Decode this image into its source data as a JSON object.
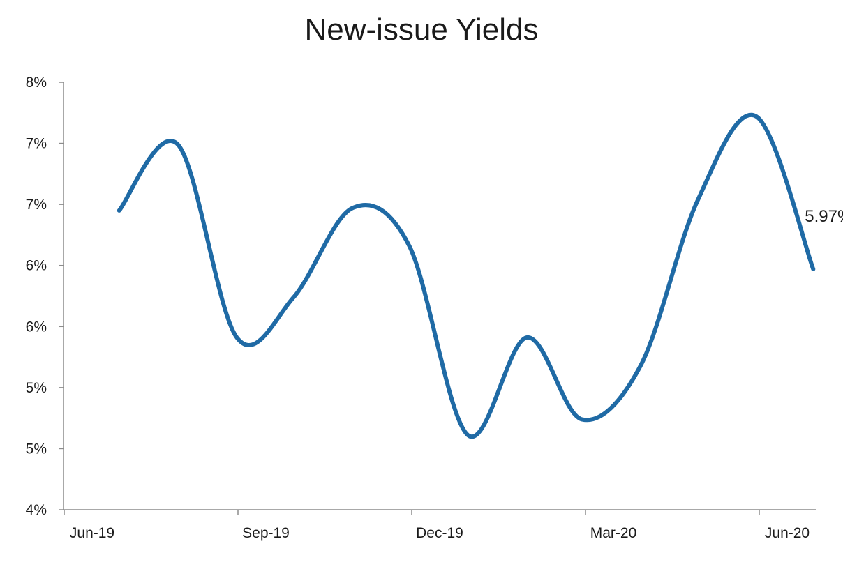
{
  "chart_data": {
    "type": "line",
    "title": "New-issue Yields",
    "xlabel": "",
    "ylabel": "",
    "x_tick_labels": [
      "Jun-19",
      "Sep-19",
      "Dec-19",
      "Mar-20",
      "Jun-20"
    ],
    "y_tick_labels": [
      "4%",
      "5%",
      "5%",
      "6%",
      "6%",
      "7%",
      "7%",
      "8%"
    ],
    "ylim": [
      4.0,
      7.5
    ],
    "grid": false,
    "legend": "none",
    "series": [
      {
        "color": "#1f6aa5",
        "x": [
          "2019-06-30",
          "2019-07-31",
          "2019-08-31",
          "2019-09-30",
          "2019-10-31",
          "2019-11-30",
          "2019-12-31",
          "2020-01-31",
          "2020-02-29",
          "2020-03-31",
          "2020-04-30",
          "2020-05-31",
          "2020-06-30"
        ],
        "values": [
          6.45,
          6.99,
          5.41,
          5.74,
          6.47,
          6.16,
          4.61,
          5.41,
          4.74,
          5.18,
          6.53,
          7.22,
          5.97
        ]
      }
    ],
    "annotations": [
      {
        "text": "5.97%",
        "x": "2020-06-30",
        "y": 5.97
      }
    ]
  }
}
